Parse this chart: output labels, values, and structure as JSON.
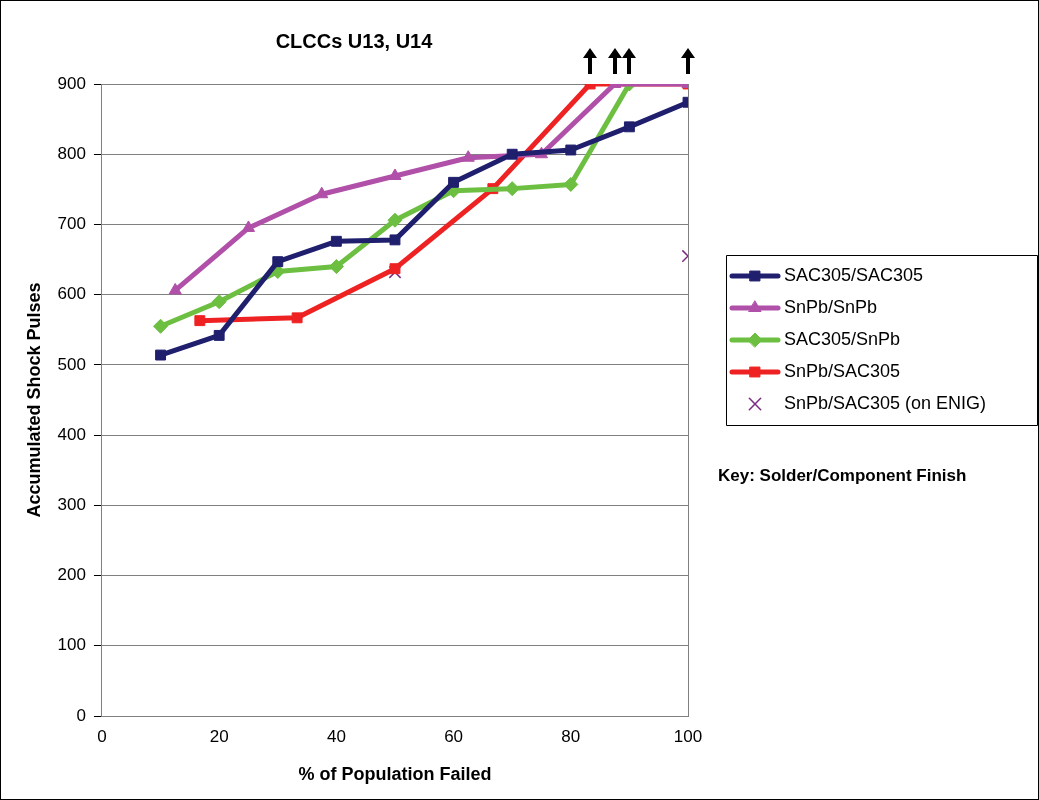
{
  "chart_data": {
    "type": "line",
    "title": "CLCCs U13, U14",
    "xlabel": "% of Population Failed",
    "ylabel": "Accumulated Shock Pulses",
    "xlim": [
      0,
      100
    ],
    "xticks": [
      0,
      20,
      40,
      60,
      80,
      100
    ],
    "ylim": [
      0,
      900
    ],
    "yticks": [
      0,
      100,
      200,
      300,
      400,
      500,
      600,
      700,
      800,
      900
    ],
    "grid": "y",
    "legend": "right",
    "annotations": [
      "Key: Solder/Component Finish"
    ],
    "series": [
      {
        "name": "SAC305/SAC305",
        "color": "#1f1f6e",
        "marker": "square",
        "x": [
          10,
          20,
          30,
          40,
          50,
          60,
          70,
          80,
          90,
          100
        ],
        "values": [
          514,
          542,
          647,
          676,
          678,
          760,
          800,
          806,
          839,
          874
        ]
      },
      {
        "name": "SnPb/SnPb",
        "color": "#b050a8",
        "marker": "triangle",
        "x": [
          12.5,
          25,
          37.5,
          50,
          62.5,
          75,
          87.5,
          100
        ],
        "values": [
          606,
          695,
          743,
          769,
          795,
          800,
          900,
          900
        ]
      },
      {
        "name": "SAC305/SnPb",
        "color": "#6cbf40",
        "marker": "diamond",
        "x": [
          10,
          20,
          30,
          40,
          50,
          60,
          70,
          80,
          90
        ],
        "values": [
          555,
          590,
          633,
          640,
          706,
          748,
          751,
          757,
          900
        ]
      },
      {
        "name": "SnPb/SAC305",
        "color": "#ee2222",
        "marker": "square",
        "x": [
          16.7,
          33.3,
          50,
          66.7,
          83.3,
          100
        ],
        "values": [
          563,
          567,
          637,
          751,
          900,
          900
        ]
      },
      {
        "name": "SnPb/SAC305 (on ENIG)",
        "color": "#7a2a80",
        "type": "scatter",
        "marker": "cross",
        "x": [
          50,
          100
        ],
        "values": [
          632,
          655
        ]
      }
    ]
  }
}
